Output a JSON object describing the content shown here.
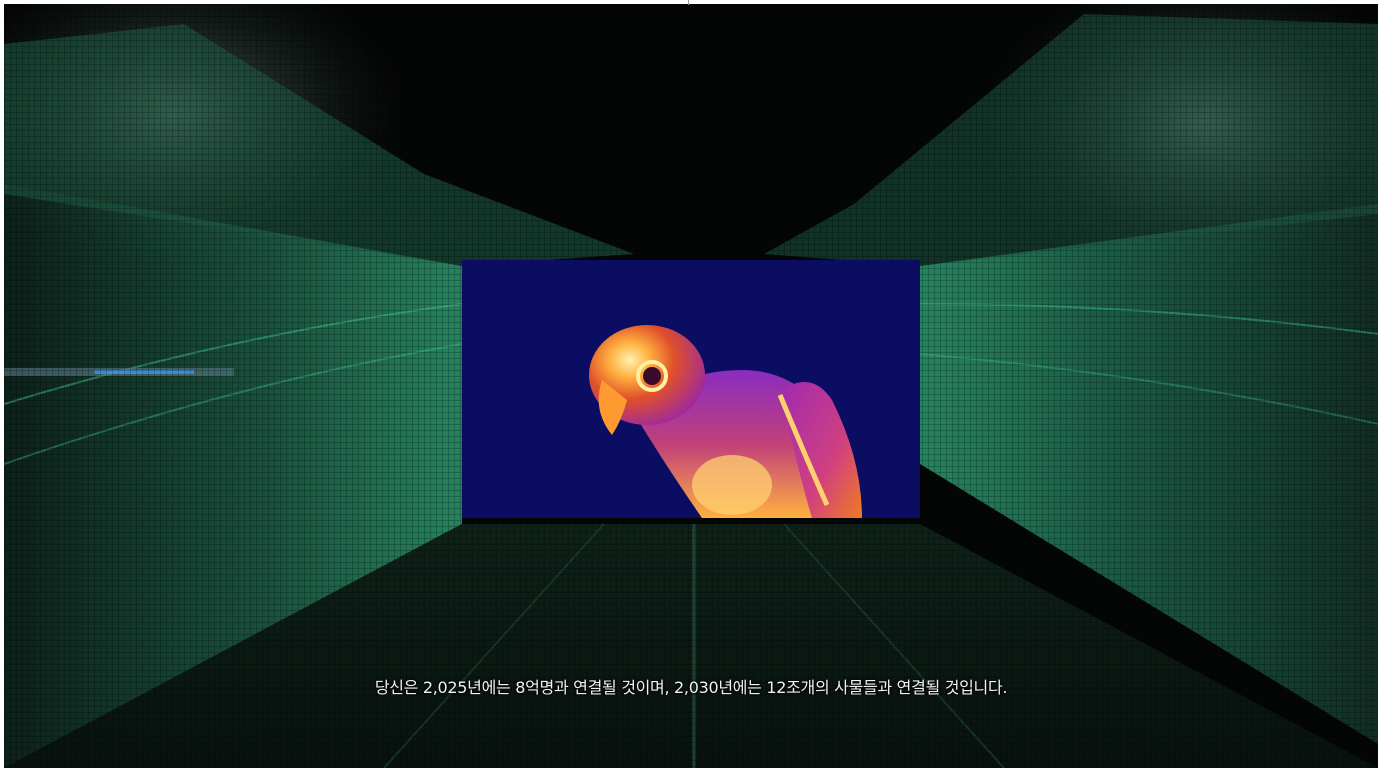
{
  "scene": {
    "background_icon": "lidar-point-cloud-tunnel",
    "inset_icon": "thermal-parrot-image",
    "colors": {
      "background": "#050706",
      "lidar_green": "#2fae7e",
      "thermal_background": "#0a0d62",
      "thermal_hot": "#ffe07a",
      "thermal_warm": "#f07a22",
      "thermal_mid": "#9a2dbf"
    }
  },
  "subtitle": {
    "text": "당신은 2,025년에는 8억명과 연결될 것이며, 2,030년에는 12조개의 사물들과 연결될 것입니다."
  }
}
